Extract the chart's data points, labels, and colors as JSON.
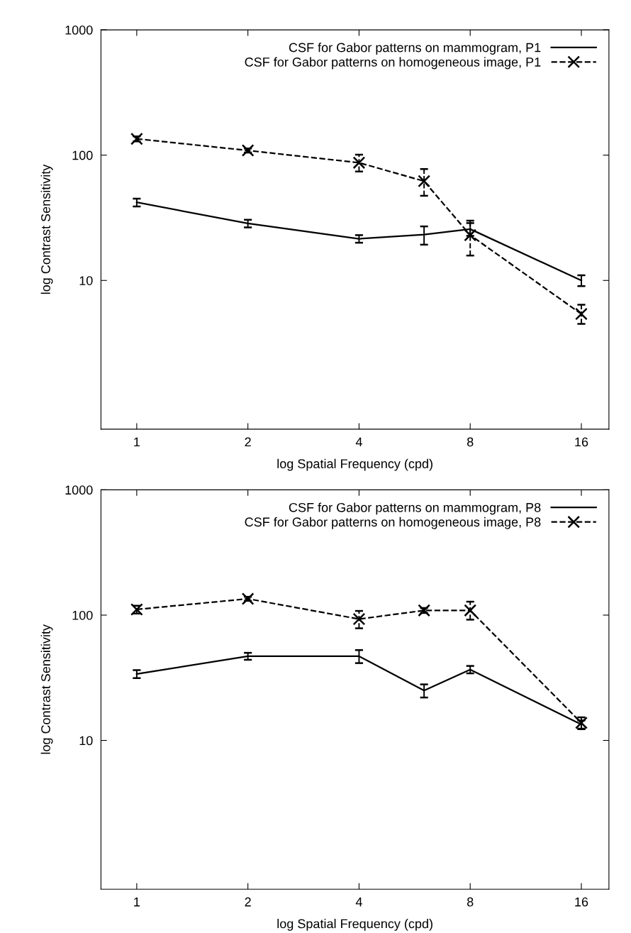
{
  "chart_data": [
    {
      "type": "line",
      "xlabel": "log Spatial Frequency (cpd)",
      "ylabel": "log Contrast Sensitivity",
      "log": "xy",
      "legend": "top right",
      "xlim": [
        0.8,
        19
      ],
      "ylim": [
        0.65,
        1000
      ],
      "xticks": [
        1,
        2,
        4,
        8,
        16
      ],
      "yticks": [
        10,
        100,
        1000
      ],
      "x": [
        1,
        2,
        4,
        6,
        8,
        16
      ],
      "series": [
        {
          "name": "CSF for Gabor patterns on mammogram, P1",
          "color": "#000000",
          "line_style": "solid",
          "marker": "none",
          "values": [
            42,
            28.5,
            21.5,
            23.2,
            25.7,
            10.0
          ],
          "errors": [
            3,
            2,
            1.5,
            [
              19.3,
              27
            ],
            3,
            [
              9.0,
              11
            ]
          ]
        },
        {
          "name": "CSF for Gabor patterns on homogeneous image, P1",
          "color": "#000000",
          "line_style": "dashed",
          "marker": "cross",
          "values": [
            135,
            109,
            87,
            62,
            23,
            5.4
          ],
          "errors": [
            6,
            4,
            [
              74,
              101
            ],
            [
              47.4,
              77.4
            ],
            [
              15.8,
              30
            ],
            [
              4.5,
              6.4
            ]
          ]
        }
      ]
    },
    {
      "type": "line",
      "xlabel": "log Spatial Frequency (cpd)",
      "ylabel": "log Contrast Sensitivity",
      "log": "xy",
      "legend": "top right",
      "xlim": [
        0.8,
        19
      ],
      "ylim": [
        0.65,
        1000
      ],
      "xticks": [
        1,
        2,
        4,
        8,
        16
      ],
      "yticks": [
        10,
        100,
        1000
      ],
      "x": [
        1,
        2,
        4,
        6,
        8,
        16
      ],
      "series": [
        {
          "name": "CSF for Gabor patterns on mammogram, P8",
          "color": "#000000",
          "line_style": "solid",
          "marker": "none",
          "values": [
            33.9,
            47,
            47,
            25,
            36.8,
            13.4
          ],
          "errors": [
            2.5,
            3,
            [
              41.4,
              52.6
            ],
            [
              22,
              28
            ],
            2.5,
            1
          ]
        },
        {
          "name": "CSF for Gabor patterns on homogeneous image, P8",
          "color": "#000000",
          "line_style": "dashed",
          "marker": "cross",
          "values": [
            111,
            135,
            93,
            109,
            109,
            13.8
          ],
          "errors": [
            8,
            5,
            [
              78.5,
              108
            ],
            5,
            [
              92,
              128
            ],
            1.5
          ]
        }
      ]
    }
  ]
}
